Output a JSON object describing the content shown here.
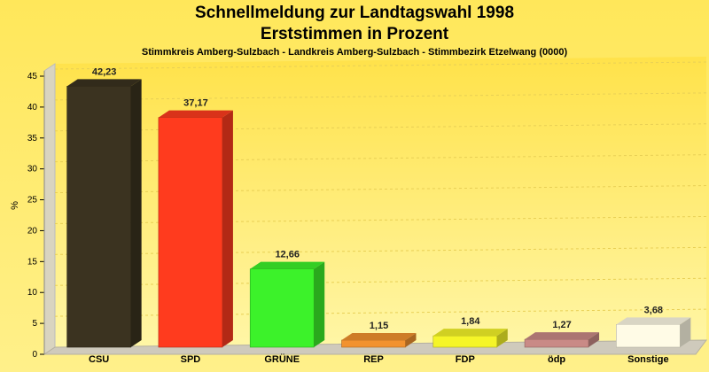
{
  "header": {
    "title_line1": "Schnellmeldung zur Landtagswahl 1998",
    "title_line2": "Erststimmen in Prozent",
    "subtitle": "Stimmkreis Amberg-Sulzbach - Landkreis Amberg-Sulzbach - Stimmbezirk Etzelwang (0000)"
  },
  "chart_data": {
    "type": "bar",
    "title": "Schnellmeldung zur Landtagswahl 1998 / Erststimmen in Prozent",
    "subtitle": "Stimmkreis Amberg-Sulzbach - Landkreis Amberg-Sulzbach - Stimmbezirk Etzelwang (0000)",
    "xlabel": "",
    "ylabel": "%",
    "ylim": [
      0,
      45
    ],
    "yticks": [
      0,
      5,
      10,
      15,
      20,
      25,
      30,
      35,
      40,
      45
    ],
    "grid": true,
    "categories": [
      "CSU",
      "SPD",
      "GRÜNE",
      "REP",
      "FDP",
      "ödp",
      "Sonstige"
    ],
    "values": [
      42.23,
      37.17,
      12.66,
      1.15,
      1.84,
      1.27,
      3.68
    ],
    "value_labels": [
      "42,23",
      "37,17",
      "12,66",
      "1,15",
      "1,84",
      "1,27",
      "3,68"
    ],
    "colors": [
      "#3b3320",
      "#ff3b1e",
      "#3cf22a",
      "#f2922e",
      "#f5f528",
      "#c98a86",
      "#fffbe6"
    ]
  }
}
